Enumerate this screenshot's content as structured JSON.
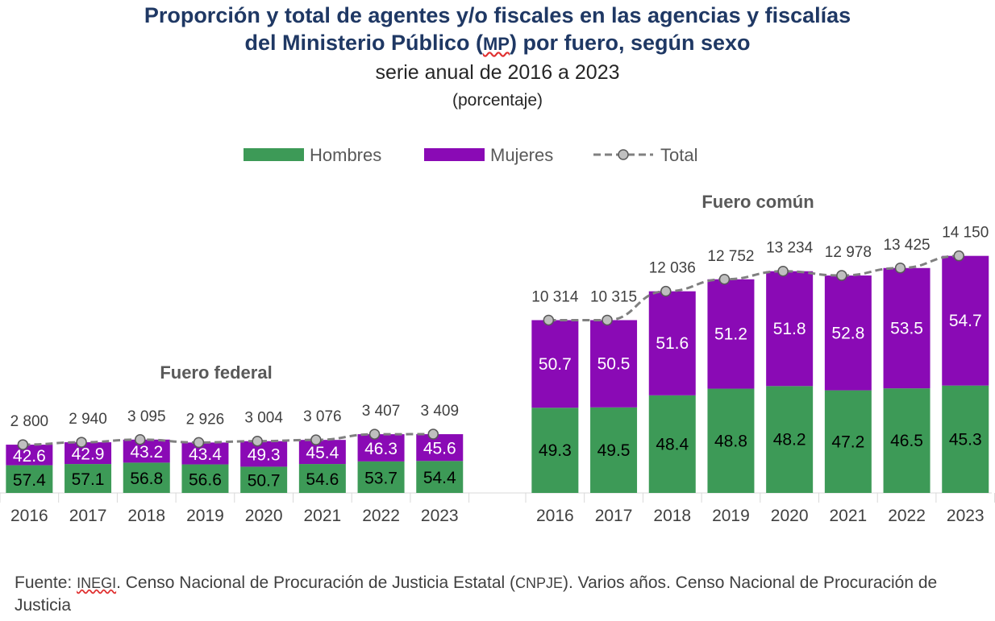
{
  "title_line1": "Proporción y total de agentes y/o fiscales en las agencias y fiscalías",
  "title_line2_pre": "del Ministerio Público (",
  "title_line2_abbr": "MP",
  "title_line2_post": ") por fuero, según sexo",
  "subtitle": "serie anual de 2016 a 2023",
  "unit": "(porcentaje)",
  "legend": {
    "hombres": "Hombres",
    "mujeres": "Mujeres",
    "total": "Total"
  },
  "colors": {
    "hombres": "#3d9a57",
    "mujeres": "#8a0ab5",
    "total": "#808080",
    "marker": "#bfbfbf"
  },
  "source": {
    "prefix": "Fuente: ",
    "inegi": "INEGI",
    "part1": ". Censo Nacional de Procuración de Justicia Estatal (",
    "cnpje": "CNPJE",
    "part2": "). Varios años. Censo Nacional de Procuración de Justicia"
  },
  "chart_data": [
    {
      "type": "bar",
      "stacked": true,
      "title": "Fuero federal",
      "categories": [
        "2016",
        "2017",
        "2018",
        "2019",
        "2020",
        "2021",
        "2022",
        "2023"
      ],
      "series": [
        {
          "name": "Hombres",
          "values": [
            57.4,
            57.1,
            56.8,
            56.6,
            50.7,
            54.6,
            53.7,
            54.4
          ]
        },
        {
          "name": "Mujeres",
          "values": [
            42.6,
            42.9,
            43.2,
            43.4,
            49.3,
            45.4,
            46.3,
            45.6
          ]
        }
      ],
      "total": {
        "name": "Total",
        "type": "line",
        "values": [
          2800,
          2940,
          3095,
          2926,
          3004,
          3076,
          3407,
          3409
        ],
        "labels": [
          "2 800",
          "2 940",
          "3 095",
          "2 926",
          "3 004",
          "3 076",
          "3 407",
          "3 409"
        ]
      }
    },
    {
      "type": "bar",
      "stacked": true,
      "title": "Fuero común",
      "categories": [
        "2016",
        "2017",
        "2018",
        "2019",
        "2020",
        "2021",
        "2022",
        "2023"
      ],
      "series": [
        {
          "name": "Hombres",
          "values": [
            49.3,
            49.5,
            48.4,
            48.8,
            48.2,
            47.2,
            46.5,
            45.3
          ]
        },
        {
          "name": "Mujeres",
          "values": [
            50.7,
            50.5,
            51.6,
            51.2,
            51.8,
            52.8,
            53.5,
            54.7
          ]
        }
      ],
      "total": {
        "name": "Total",
        "type": "line",
        "values": [
          10314,
          10315,
          12036,
          12752,
          13234,
          12978,
          13425,
          14150
        ],
        "labels": [
          "10 314",
          "10 315",
          "12 036",
          "12 752",
          "13 234",
          "12 978",
          "13 425",
          "14 150"
        ]
      }
    }
  ]
}
